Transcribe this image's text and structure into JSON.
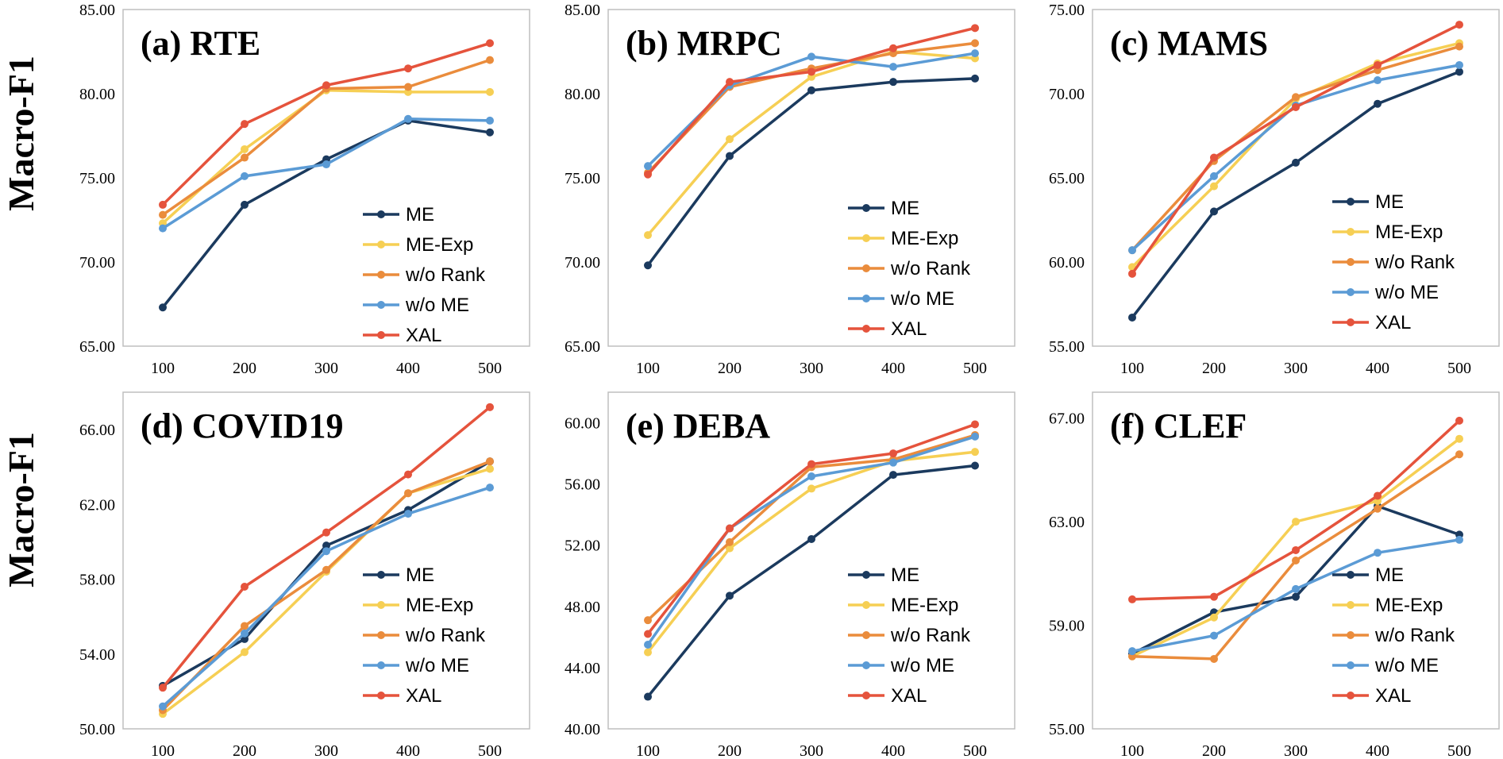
{
  "y_axis_label": "Macro-F1",
  "colors": {
    "ME": "#1b3a5e",
    "ME-Exp": "#f6cf54",
    "w/o Rank": "#ea8c3c",
    "w/o ME": "#5b9bd5",
    "XAL": "#e5533c"
  },
  "chart_data": [
    {
      "type": "line",
      "title": "(a) RTE",
      "ylabel": "Macro-F1",
      "x": [
        100,
        200,
        300,
        400,
        500
      ],
      "x_tick_labels": [
        "100",
        "200",
        "300",
        "400",
        "500"
      ],
      "ylim": [
        65,
        85
      ],
      "y_ticks": [
        65,
        70,
        75,
        80,
        85
      ],
      "y_tick_labels": [
        "65.00",
        "70.00",
        "75.00",
        "80.00",
        "85.00"
      ],
      "legend_position": "center-right",
      "series": [
        {
          "name": "ME",
          "values": [
            67.3,
            73.4,
            76.1,
            78.4,
            77.7
          ]
        },
        {
          "name": "ME-Exp",
          "values": [
            72.3,
            76.7,
            80.2,
            80.1,
            80.1
          ]
        },
        {
          "name": "w/o Rank",
          "values": [
            72.8,
            76.2,
            80.3,
            80.4,
            82.0
          ]
        },
        {
          "name": "w/o ME",
          "values": [
            72.0,
            75.1,
            75.8,
            78.5,
            78.4
          ]
        },
        {
          "name": "XAL",
          "values": [
            73.4,
            78.2,
            80.5,
            81.5,
            83.0
          ]
        }
      ]
    },
    {
      "type": "line",
      "title": "(b) MRPC",
      "ylabel": "",
      "x": [
        100,
        200,
        300,
        400,
        500
      ],
      "x_tick_labels": [
        "100",
        "200",
        "300",
        "400",
        "500"
      ],
      "ylim": [
        65,
        85
      ],
      "y_ticks": [
        65,
        70,
        75,
        80,
        85
      ],
      "y_tick_labels": [
        "65.00",
        "70.00",
        "75.00",
        "80.00",
        "85.00"
      ],
      "legend_position": "center-right",
      "series": [
        {
          "name": "ME",
          "values": [
            69.8,
            76.3,
            80.2,
            80.7,
            80.9
          ]
        },
        {
          "name": "ME-Exp",
          "values": [
            71.6,
            77.3,
            81.0,
            82.5,
            82.1
          ]
        },
        {
          "name": "w/o Rank",
          "values": [
            75.3,
            80.4,
            81.5,
            82.4,
            83.0
          ]
        },
        {
          "name": "w/o ME",
          "values": [
            75.7,
            80.5,
            82.2,
            81.6,
            82.4
          ]
        },
        {
          "name": "XAL",
          "values": [
            75.2,
            80.7,
            81.3,
            82.7,
            83.9
          ]
        }
      ]
    },
    {
      "type": "line",
      "title": "(c) MAMS",
      "ylabel": "",
      "x": [
        100,
        200,
        300,
        400,
        500
      ],
      "x_tick_labels": [
        "100",
        "200",
        "300",
        "400",
        "500"
      ],
      "ylim": [
        55,
        75
      ],
      "y_ticks": [
        55,
        60,
        65,
        70,
        75
      ],
      "y_tick_labels": [
        "55.00",
        "60.00",
        "65.00",
        "70.00",
        "75.00"
      ],
      "legend_position": "center-right",
      "series": [
        {
          "name": "ME",
          "values": [
            56.7,
            63.0,
            65.9,
            69.4,
            71.3
          ]
        },
        {
          "name": "ME-Exp",
          "values": [
            59.7,
            64.5,
            69.7,
            71.8,
            73.0
          ]
        },
        {
          "name": "w/o Rank",
          "values": [
            60.7,
            66.0,
            69.8,
            71.4,
            72.8
          ]
        },
        {
          "name": "w/o ME",
          "values": [
            60.7,
            65.1,
            69.3,
            70.8,
            71.7
          ]
        },
        {
          "name": "XAL",
          "values": [
            59.3,
            66.2,
            69.2,
            71.7,
            74.1
          ]
        }
      ]
    },
    {
      "type": "line",
      "title": "(d) COVID19",
      "ylabel": "Macro-F1",
      "x": [
        100,
        200,
        300,
        400,
        500
      ],
      "x_tick_labels": [
        "100",
        "200",
        "300",
        "400",
        "500"
      ],
      "ylim": [
        50,
        68
      ],
      "y_ticks": [
        50,
        54,
        58,
        62,
        66
      ],
      "y_tick_labels": [
        "50.00",
        "54.00",
        "58.00",
        "62.00",
        "66.00"
      ],
      "legend_position": "center-right",
      "series": [
        {
          "name": "ME",
          "values": [
            52.3,
            54.8,
            59.8,
            61.7,
            64.3
          ]
        },
        {
          "name": "ME-Exp",
          "values": [
            50.8,
            54.1,
            58.4,
            62.6,
            63.9
          ]
        },
        {
          "name": "w/o Rank",
          "values": [
            51.0,
            55.5,
            58.5,
            62.6,
            64.3
          ]
        },
        {
          "name": "w/o ME",
          "values": [
            51.2,
            55.1,
            59.5,
            61.5,
            62.9
          ]
        },
        {
          "name": "XAL",
          "values": [
            52.2,
            57.6,
            60.5,
            63.6,
            67.2
          ]
        }
      ]
    },
    {
      "type": "line",
      "title": "(e) DEBA",
      "ylabel": "",
      "x": [
        100,
        200,
        300,
        400,
        500
      ],
      "x_tick_labels": [
        "100",
        "200",
        "300",
        "400",
        "500"
      ],
      "ylim": [
        40,
        62
      ],
      "y_ticks": [
        40,
        44,
        48,
        52,
        56,
        60
      ],
      "y_tick_labels": [
        "40.00",
        "44.00",
        "48.00",
        "52.00",
        "56.00",
        "60.00"
      ],
      "legend_position": "center-right",
      "series": [
        {
          "name": "ME",
          "values": [
            42.1,
            48.7,
            52.4,
            56.6,
            57.2
          ]
        },
        {
          "name": "ME-Exp",
          "values": [
            45.0,
            51.8,
            55.7,
            57.5,
            58.1
          ]
        },
        {
          "name": "w/o Rank",
          "values": [
            47.1,
            52.2,
            57.1,
            57.6,
            59.2
          ]
        },
        {
          "name": "w/o ME",
          "values": [
            45.5,
            53.1,
            56.5,
            57.4,
            59.1
          ]
        },
        {
          "name": "XAL",
          "values": [
            46.2,
            53.1,
            57.3,
            58.0,
            59.9
          ]
        }
      ]
    },
    {
      "type": "line",
      "title": "(f) CLEF",
      "ylabel": "",
      "x": [
        100,
        200,
        300,
        400,
        500
      ],
      "x_tick_labels": [
        "100",
        "200",
        "300",
        "400",
        "500"
      ],
      "ylim": [
        55,
        68
      ],
      "y_ticks": [
        55,
        59,
        63,
        67
      ],
      "y_tick_labels": [
        "55.00",
        "59.00",
        "63.00",
        "67.00"
      ],
      "legend_position": "center-right",
      "series": [
        {
          "name": "ME",
          "values": [
            57.9,
            59.5,
            60.1,
            63.6,
            62.5
          ]
        },
        {
          "name": "ME-Exp",
          "values": [
            57.8,
            59.3,
            63.0,
            63.8,
            66.2
          ]
        },
        {
          "name": "w/o Rank",
          "values": [
            57.8,
            57.7,
            61.5,
            63.5,
            65.6
          ]
        },
        {
          "name": "w/o ME",
          "values": [
            58.0,
            58.6,
            60.4,
            61.8,
            62.3
          ]
        },
        {
          "name": "XAL",
          "values": [
            60.0,
            60.1,
            61.9,
            64.0,
            66.9
          ]
        }
      ]
    }
  ]
}
